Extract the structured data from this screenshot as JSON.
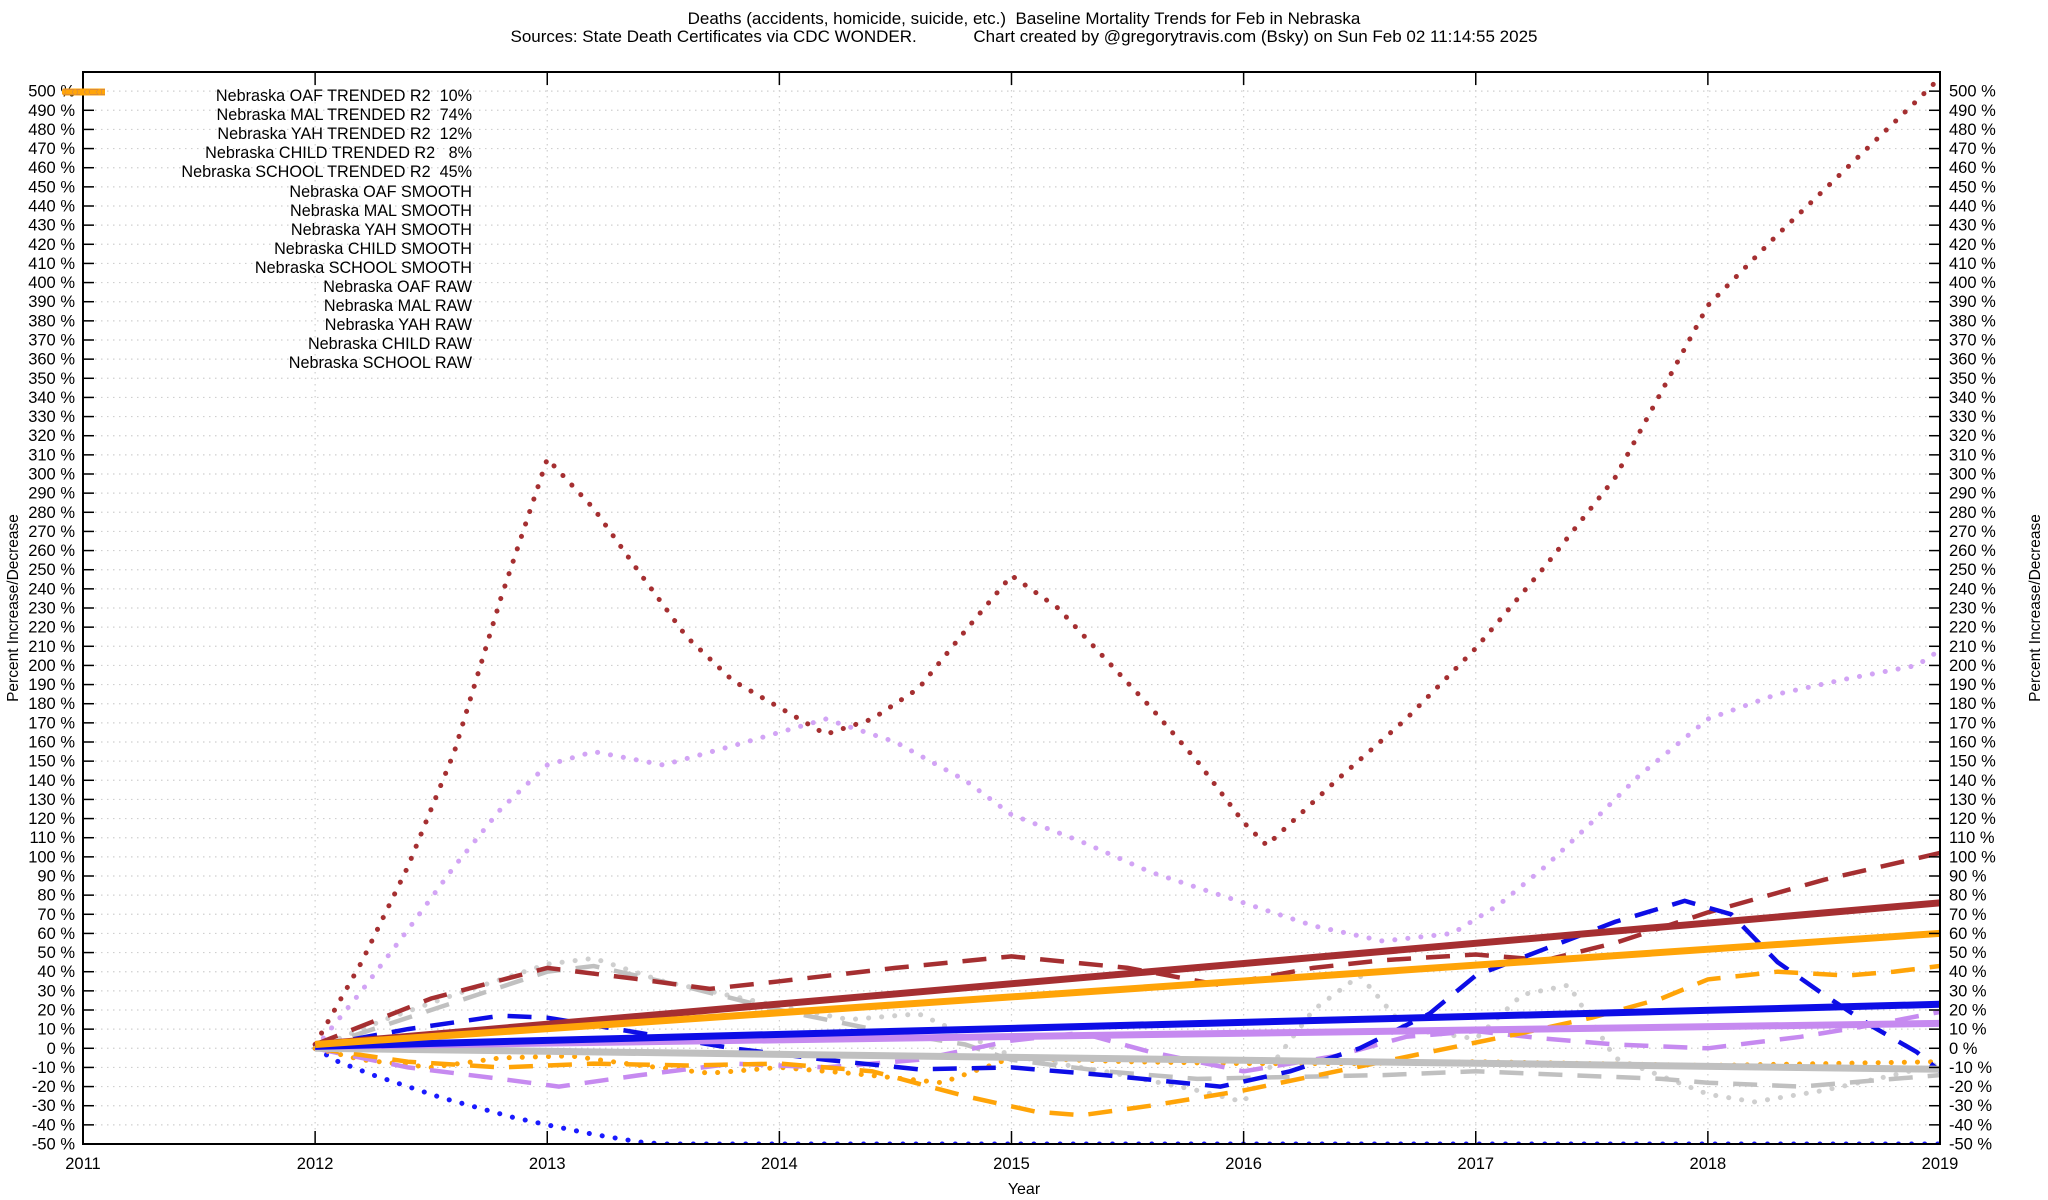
{
  "header": {
    "title_line1": "Deaths (accidents, homicide, suicide, etc.)  Baseline Mortality Trends for Feb in Nebraska",
    "title_line2": "Sources: State Death Certificates via CDC WONDER.            Chart created by @gregorytravis.com (Bsky) on Sun Feb 02 11:14:55 2025"
  },
  "axes": {
    "x_label": "Year",
    "y_label_left": "Percent Increase/Decrease",
    "y_label_right": "Percent Increase/Decrease",
    "x_ticks": [
      2011,
      2012,
      2013,
      2014,
      2015,
      2016,
      2017,
      2018,
      2019
    ],
    "y_tick_min": -50,
    "y_tick_max": 500,
    "y_tick_step": 10,
    "y_tick_suffix": " %",
    "x_range": [
      2011,
      2019
    ],
    "y_range": [
      -50,
      510
    ],
    "grid": "dotted"
  },
  "chart_data": {
    "type": "line",
    "title": "Deaths (accidents, homicide, suicide, etc.)  Baseline Mortality Trends for Feb in Nebraska",
    "xlabel": "Year",
    "ylabel": "Percent Increase/Decrease",
    "xlim": [
      2011,
      2019
    ],
    "ylim": [
      -50,
      510
    ],
    "legend_position": "top-left-inside",
    "series": [
      {
        "id": "oaf-trended",
        "legend_label": "Nebraska OAF TRENDED R2  10%",
        "color": "#c0c0c0",
        "style": "solid",
        "points": [
          [
            2012,
            0
          ],
          [
            2019,
            -11
          ]
        ]
      },
      {
        "id": "mal-trended",
        "legend_label": "Nebraska MAL TRENDED R2  74%",
        "color": "#a52f31",
        "style": "solid",
        "points": [
          [
            2012,
            2
          ],
          [
            2019,
            76
          ]
        ]
      },
      {
        "id": "yah-trended",
        "legend_label": "Nebraska YAH TRENDED R2  12%",
        "color": "#c68af0",
        "style": "solid",
        "points": [
          [
            2012,
            1
          ],
          [
            2019,
            13
          ]
        ]
      },
      {
        "id": "child-trended",
        "legend_label": "Nebraska CHILD TRENDED R2   8%",
        "color": "#0d0de6",
        "style": "solid",
        "points": [
          [
            2012,
            1
          ],
          [
            2019,
            23
          ]
        ]
      },
      {
        "id": "school-trended",
        "legend_label": "Nebraska SCHOOL TRENDED R2  45%",
        "color": "#ffa408",
        "style": "solid",
        "points": [
          [
            2012,
            2
          ],
          [
            2019,
            60
          ]
        ]
      },
      {
        "id": "oaf-smooth",
        "legend_label": "Nebraska OAF SMOOTH",
        "color": "#c0c0c0",
        "style": "dashed",
        "points": [
          [
            2012,
            0
          ],
          [
            2012.5,
            20
          ],
          [
            2013,
            40
          ],
          [
            2013.2,
            43
          ],
          [
            2013.6,
            32
          ],
          [
            2014,
            20
          ],
          [
            2014.4,
            10
          ],
          [
            2014.8,
            2
          ],
          [
            2015,
            -6
          ],
          [
            2015.4,
            -12
          ],
          [
            2015.8,
            -16
          ],
          [
            2016.2,
            -15
          ],
          [
            2016.6,
            -14
          ],
          [
            2017,
            -12
          ],
          [
            2017.4,
            -14
          ],
          [
            2017.8,
            -16
          ],
          [
            2018,
            -18
          ],
          [
            2018.4,
            -20
          ],
          [
            2018.7,
            -17
          ],
          [
            2019,
            -14
          ]
        ]
      },
      {
        "id": "mal-smooth",
        "legend_label": "Nebraska MAL SMOOTH",
        "color": "#a52f31",
        "style": "dashed",
        "points": [
          [
            2012,
            2
          ],
          [
            2012.5,
            26
          ],
          [
            2013,
            42
          ],
          [
            2013.4,
            36
          ],
          [
            2013.7,
            31
          ],
          [
            2014,
            35
          ],
          [
            2014.5,
            42
          ],
          [
            2015,
            48
          ],
          [
            2015.5,
            42
          ],
          [
            2015.9,
            33
          ],
          [
            2016.3,
            42
          ],
          [
            2016.6,
            46
          ],
          [
            2017,
            49
          ],
          [
            2017.3,
            46
          ],
          [
            2017.6,
            55
          ],
          [
            2018,
            71
          ],
          [
            2018.5,
            88
          ],
          [
            2019,
            102
          ]
        ]
      },
      {
        "id": "yah-smooth",
        "legend_label": "Nebraska YAH SMOOTH",
        "color": "#c68af0",
        "style": "dashed",
        "points": [
          [
            2012,
            0
          ],
          [
            2012.4,
            -10
          ],
          [
            2012.8,
            -16
          ],
          [
            2013.05,
            -20
          ],
          [
            2013.4,
            -14
          ],
          [
            2013.8,
            -8
          ],
          [
            2014.2,
            -10
          ],
          [
            2014.6,
            -6
          ],
          [
            2015,
            4
          ],
          [
            2015.3,
            8
          ],
          [
            2015.6,
            -2
          ],
          [
            2016,
            -12
          ],
          [
            2016.4,
            -4
          ],
          [
            2016.7,
            6
          ],
          [
            2017,
            9
          ],
          [
            2017.3,
            5
          ],
          [
            2017.6,
            2
          ],
          [
            2018,
            0
          ],
          [
            2018.4,
            6
          ],
          [
            2018.7,
            12
          ],
          [
            2019,
            19
          ]
        ]
      },
      {
        "id": "child-smooth",
        "legend_label": "Nebraska CHILD SMOOTH",
        "color": "#0d0de6",
        "style": "dashed",
        "points": [
          [
            2012,
            1
          ],
          [
            2012.4,
            10
          ],
          [
            2012.8,
            17
          ],
          [
            2013,
            16
          ],
          [
            2013.4,
            8
          ],
          [
            2013.8,
            0
          ],
          [
            2014.2,
            -6
          ],
          [
            2014.6,
            -11
          ],
          [
            2015,
            -10
          ],
          [
            2015.4,
            -14
          ],
          [
            2015.9,
            -20
          ],
          [
            2016.2,
            -12
          ],
          [
            2016.5,
            0
          ],
          [
            2016.8,
            18
          ],
          [
            2017,
            38
          ],
          [
            2017.3,
            52
          ],
          [
            2017.6,
            66
          ],
          [
            2017.9,
            77
          ],
          [
            2018.1,
            70
          ],
          [
            2018.3,
            45
          ],
          [
            2018.5,
            28
          ],
          [
            2018.7,
            12
          ],
          [
            2018.9,
            -2
          ],
          [
            2019,
            -12
          ]
        ]
      },
      {
        "id": "school-smooth",
        "legend_label": "Nebraska SCHOOL SMOOTH",
        "color": "#ffa408",
        "style": "dashed",
        "points": [
          [
            2012,
            0
          ],
          [
            2012.4,
            -7
          ],
          [
            2012.8,
            -10
          ],
          [
            2013.2,
            -8
          ],
          [
            2013.6,
            -9
          ],
          [
            2014,
            -8
          ],
          [
            2014.4,
            -12
          ],
          [
            2014.8,
            -25
          ],
          [
            2015.1,
            -33
          ],
          [
            2015.3,
            -35
          ],
          [
            2015.6,
            -30
          ],
          [
            2016,
            -22
          ],
          [
            2016.4,
            -12
          ],
          [
            2016.8,
            -2
          ],
          [
            2017.2,
            8
          ],
          [
            2017.5,
            16
          ],
          [
            2017.8,
            26
          ],
          [
            2018,
            36
          ],
          [
            2018.3,
            40
          ],
          [
            2018.6,
            38
          ],
          [
            2018.8,
            40
          ],
          [
            2019,
            43
          ]
        ]
      },
      {
        "id": "oaf-raw",
        "legend_label": "Nebraska OAF RAW",
        "color": "#cfcfcf",
        "style": "dotted",
        "points": [
          [
            2012,
            0
          ],
          [
            2012.3,
            15
          ],
          [
            2012.6,
            28
          ],
          [
            2013,
            44
          ],
          [
            2013.2,
            47
          ],
          [
            2013.5,
            35
          ],
          [
            2014,
            22
          ],
          [
            2014.3,
            15
          ],
          [
            2014.6,
            18
          ],
          [
            2015,
            -4
          ],
          [
            2015.4,
            -12
          ],
          [
            2015.8,
            -22
          ],
          [
            2016,
            -28
          ],
          [
            2016.3,
            20
          ],
          [
            2016.5,
            38
          ],
          [
            2016.7,
            10
          ],
          [
            2017,
            5
          ],
          [
            2017.2,
            28
          ],
          [
            2017.4,
            33
          ],
          [
            2017.6,
            -5
          ],
          [
            2018,
            -24
          ],
          [
            2018.2,
            -28
          ],
          [
            2018.5,
            -22
          ],
          [
            2018.8,
            -14
          ],
          [
            2019,
            -8
          ]
        ]
      },
      {
        "id": "mal-raw",
        "legend_label": "Nebraska MAL RAW",
        "color": "#a52f31",
        "style": "dotted",
        "points": [
          [
            2012,
            2
          ],
          [
            2012.2,
            45
          ],
          [
            2012.4,
            95
          ],
          [
            2012.6,
            155
          ],
          [
            2012.8,
            235
          ],
          [
            2013,
            308
          ],
          [
            2013.2,
            282
          ],
          [
            2013.4,
            248
          ],
          [
            2013.6,
            215
          ],
          [
            2013.8,
            192
          ],
          [
            2014,
            178
          ],
          [
            2014.2,
            164
          ],
          [
            2014.4,
            172
          ],
          [
            2014.6,
            188
          ],
          [
            2014.8,
            218
          ],
          [
            2015,
            247
          ],
          [
            2015.2,
            230
          ],
          [
            2015.4,
            204
          ],
          [
            2015.6,
            178
          ],
          [
            2015.8,
            150
          ],
          [
            2016,
            118
          ],
          [
            2016.1,
            106
          ],
          [
            2016.4,
            140
          ],
          [
            2016.7,
            172
          ],
          [
            2017,
            209
          ],
          [
            2017.3,
            252
          ],
          [
            2017.6,
            298
          ],
          [
            2018,
            388
          ],
          [
            2018.3,
            425
          ],
          [
            2018.6,
            460
          ],
          [
            2018.9,
            495
          ],
          [
            2019,
            507
          ]
        ]
      },
      {
        "id": "yah-raw",
        "legend_label": "Nebraska YAH RAW",
        "color": "#d2a4f5",
        "style": "dotted",
        "points": [
          [
            2012,
            0
          ],
          [
            2012.2,
            30
          ],
          [
            2012.4,
            62
          ],
          [
            2012.6,
            95
          ],
          [
            2012.8,
            125
          ],
          [
            2013,
            148
          ],
          [
            2013.2,
            155
          ],
          [
            2013.5,
            148
          ],
          [
            2013.8,
            158
          ],
          [
            2014,
            165
          ],
          [
            2014.2,
            172
          ],
          [
            2014.5,
            160
          ],
          [
            2014.8,
            140
          ],
          [
            2015,
            122
          ],
          [
            2015.3,
            108
          ],
          [
            2015.6,
            92
          ],
          [
            2016,
            76
          ],
          [
            2016.3,
            64
          ],
          [
            2016.6,
            56
          ],
          [
            2016.9,
            60
          ],
          [
            2017.1,
            75
          ],
          [
            2017.3,
            95
          ],
          [
            2017.5,
            118
          ],
          [
            2017.7,
            142
          ],
          [
            2017.9,
            162
          ],
          [
            2018,
            172
          ],
          [
            2018.3,
            185
          ],
          [
            2018.6,
            193
          ],
          [
            2018.9,
            200
          ],
          [
            2019,
            208
          ]
        ]
      },
      {
        "id": "child-raw",
        "legend_label": "Nebraska CHILD RAW",
        "color": "#1a1aff",
        "style": "dotted",
        "points": [
          [
            2012,
            0
          ],
          [
            2012.1,
            -7
          ],
          [
            2012.25,
            -14
          ],
          [
            2012.4,
            -20
          ],
          [
            2012.55,
            -26
          ],
          [
            2012.7,
            -31
          ],
          [
            2012.85,
            -36
          ],
          [
            2013,
            -40
          ],
          [
            2013.2,
            -45
          ],
          [
            2013.4,
            -49
          ],
          [
            2013.5,
            -50
          ],
          [
            2019,
            -50
          ]
        ]
      },
      {
        "id": "school-raw",
        "legend_label": "Nebraska SCHOOL RAW",
        "color": "#ffa408",
        "style": "dotted",
        "points": [
          [
            2012,
            0
          ],
          [
            2012.2,
            -6
          ],
          [
            2012.5,
            -10
          ],
          [
            2012.8,
            -5
          ],
          [
            2013.1,
            -4
          ],
          [
            2013.4,
            -9
          ],
          [
            2013.7,
            -13
          ],
          [
            2014,
            -10
          ],
          [
            2014.3,
            -13
          ],
          [
            2014.7,
            -18
          ],
          [
            2015,
            -5
          ],
          [
            2015.5,
            -7
          ],
          [
            2016,
            -8
          ],
          [
            2016.5,
            -8
          ],
          [
            2017,
            -7
          ],
          [
            2017.5,
            -8
          ],
          [
            2018,
            -9
          ],
          [
            2018.5,
            -8
          ],
          [
            2019,
            -7
          ]
        ]
      }
    ]
  }
}
